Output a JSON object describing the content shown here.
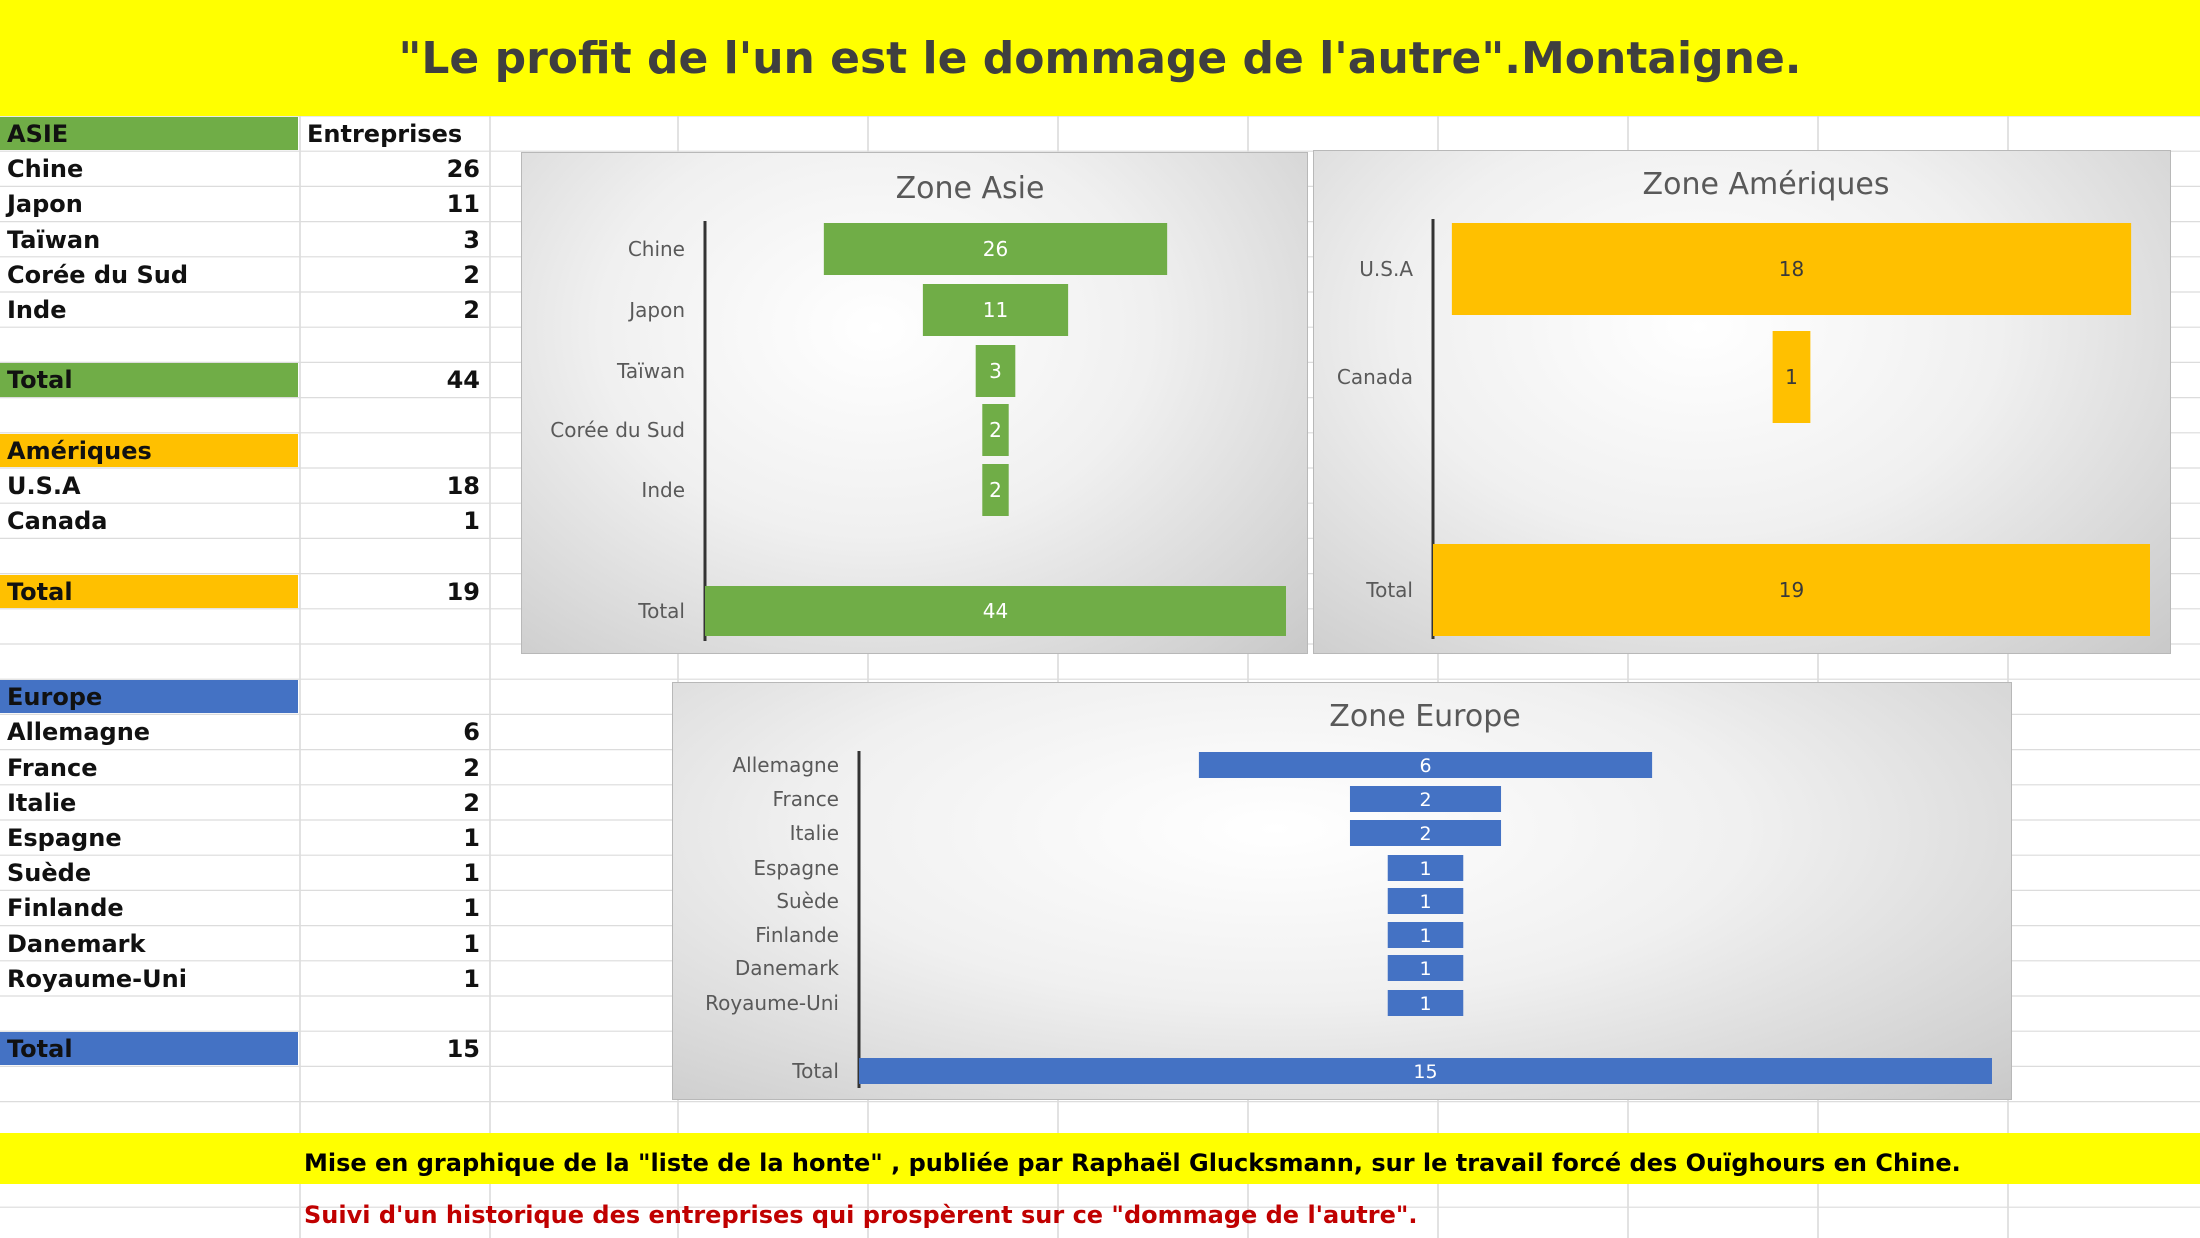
{
  "title": "\"Le profit de l'un est le dommage de l'autre\".Montaigne.",
  "colors": {
    "asia": "#70ad47",
    "americas": "#ffc000",
    "europe": "#4472c4",
    "banner": "#ffff00",
    "footer_red": "#c00000"
  },
  "table": {
    "header_col2": "Entreprises",
    "asia": {
      "heading": "ASIE",
      "rows": [
        {
          "label": "Chine",
          "value": "26"
        },
        {
          "label": "Japon",
          "value": "11"
        },
        {
          "label": "Taïwan",
          "value": "3"
        },
        {
          "label": "Corée du Sud",
          "value": "2"
        },
        {
          "label": "Inde",
          "value": "2"
        }
      ],
      "total_label": "Total",
      "total_value": "44"
    },
    "americas": {
      "heading": "Amériques",
      "rows": [
        {
          "label": "U.S.A",
          "value": "18"
        },
        {
          "label": "Canada",
          "value": "1"
        }
      ],
      "total_label": "Total",
      "total_value": "19"
    },
    "europe": {
      "heading": "Europe",
      "rows": [
        {
          "label": "Allemagne",
          "value": "6"
        },
        {
          "label": "France",
          "value": "2"
        },
        {
          "label": "Italie",
          "value": "2"
        },
        {
          "label": "Espagne",
          "value": "1"
        },
        {
          "label": "Suède",
          "value": "1"
        },
        {
          "label": "Finlande",
          "value": "1"
        },
        {
          "label": "Danemark",
          "value": "1"
        },
        {
          "label": "Royaume-Uni",
          "value": "1"
        }
      ],
      "total_label": "Total",
      "total_value": "15"
    }
  },
  "chart_data": [
    {
      "type": "bar",
      "title": "Zone Asie",
      "orientation": "horizontal-centered",
      "categories": [
        "Chine",
        "Japon",
        "Taïwan",
        "Corée du Sud",
        "Inde",
        "Total"
      ],
      "values": [
        26,
        11,
        3,
        2,
        2,
        44
      ],
      "color": "#70ad47"
    },
    {
      "type": "bar",
      "title": "Zone Amériques",
      "orientation": "horizontal-centered",
      "categories": [
        "U.S.A",
        "Canada",
        "Total"
      ],
      "values": [
        18,
        1,
        19
      ],
      "color": "#ffc000"
    },
    {
      "type": "bar",
      "title": "Zone Europe",
      "orientation": "horizontal-centered",
      "categories": [
        "Allemagne",
        "France",
        "Italie",
        "Espagne",
        "Suède",
        "Finlande",
        "Danemark",
        "Royaume-Uni",
        "Total"
      ],
      "values": [
        6,
        2,
        2,
        1,
        1,
        1,
        1,
        1,
        15
      ],
      "color": "#4472c4"
    }
  ],
  "footer": {
    "line1": "Mise en graphique de la \"liste de la honte\" , publiée par Raphaël Glucksmann, sur le travail forcé des Ouïghours en Chine.",
    "line2": "Suivi d'un historique des entreprises qui prospèrent sur ce \"dommage de l'autre\"."
  }
}
